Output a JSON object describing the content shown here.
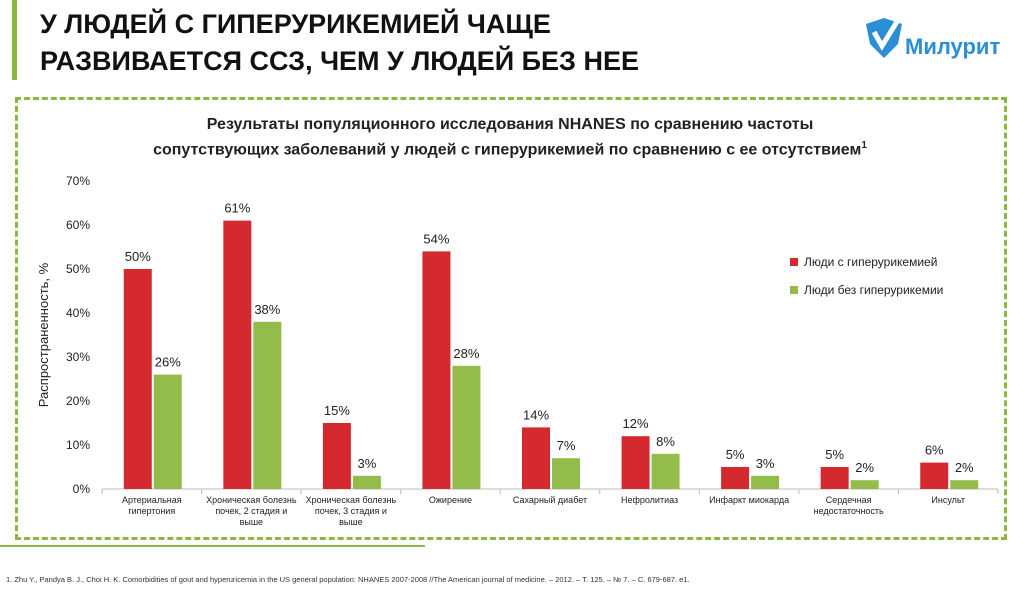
{
  "header": {
    "title_line1": "У ЛЮДЕЙ С ГИПЕРУРИКЕМИЕЙ ЧАЩЕ",
    "title_line2": "РАЗВИВАЕТСЯ ССЗ, ЧЕМ У ЛЮДЕЙ БЕЗ НЕЕ",
    "logo": "Милурит"
  },
  "colors": {
    "red": "#d42a2f",
    "green": "#93bc4b",
    "accent": "#8bb840",
    "logo": "#2a8fd4"
  },
  "chart_data": {
    "type": "bar",
    "title_line1": "Результаты популяционного исследования NHANES по сравнению частоты",
    "title_line2": "сопутствующих заболеваний у людей с гиперурикемией по сравнению с ее отсутствием",
    "title_sup": "1",
    "ylabel": "Распространенность, %",
    "ylim": [
      0,
      70
    ],
    "yticks": [
      "0%",
      "10%",
      "20%",
      "30%",
      "40%",
      "50%",
      "60%",
      "70%"
    ],
    "categories": [
      [
        "Артериальная",
        "гипертония"
      ],
      [
        "Хроническая болезнь",
        "почек, 2 стадия и",
        "выше"
      ],
      [
        "Хроническая болезнь",
        "почек, 3 стадия и",
        "выше"
      ],
      [
        "Ожирение"
      ],
      [
        "Сахарный диабет"
      ],
      [
        "Нефролитиаз"
      ],
      [
        "Инфаркт миокарда"
      ],
      [
        "Сердечная",
        "недостаточность"
      ],
      [
        "Инсульт"
      ]
    ],
    "series": [
      {
        "name": "Люди с гиперурикемией",
        "values": [
          50,
          61,
          15,
          54,
          14,
          12,
          5,
          5,
          6
        ]
      },
      {
        "name": "Люди без гиперурикемии",
        "values": [
          26,
          38,
          3,
          28,
          7,
          8,
          3,
          2,
          2
        ]
      }
    ],
    "legend": "right"
  },
  "footnote": "1.   Zhu Y., Pandya B. J., Choi H. K. Comorbidities of gout and hyperuricemia in the US general population: NHANES 2007-2008 //The American journal of medicine. – 2012. – Т. 125. – № 7. – С. 679-687. e1."
}
